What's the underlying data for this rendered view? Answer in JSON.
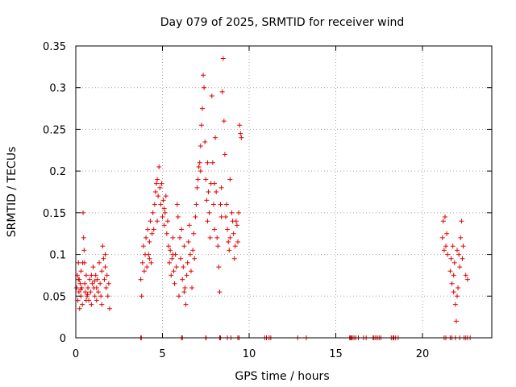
{
  "chart_data": {
    "type": "scatter",
    "title": "Day 079 of 2025, SRMTID for receiver wind",
    "xlabel": "GPS time / hours",
    "ylabel": "SRMTID / TECUs",
    "xlim": [
      0,
      24
    ],
    "ylim": [
      0,
      0.35
    ],
    "xticks": [
      0,
      5,
      10,
      15,
      20
    ],
    "xtick_labels": [
      "0",
      "5",
      "10",
      "15",
      "20"
    ],
    "yticks": [
      0,
      0.05,
      0.1,
      0.15,
      0.2,
      0.25,
      0.3,
      0.35
    ],
    "ytick_labels": [
      "0",
      "0.05",
      "0.1",
      "0.15",
      "0.2",
      "0.25",
      "0.3",
      "0.35"
    ],
    "grid": true,
    "marker": "plus",
    "color": "#e00000",
    "series": [
      {
        "name": "SRMTID",
        "points": [
          [
            0.05,
            0.06
          ],
          [
            0.1,
            0.075
          ],
          [
            0.12,
            0.045
          ],
          [
            0.15,
            0.09
          ],
          [
            0.18,
            0.055
          ],
          [
            0.2,
            0.07
          ],
          [
            0.22,
            0.035
          ],
          [
            0.25,
            0.065
          ],
          [
            0.3,
            0.05
          ],
          [
            0.3,
            0.08
          ],
          [
            0.35,
            0.06
          ],
          [
            0.38,
            0.04
          ],
          [
            0.42,
            0.15
          ],
          [
            0.45,
            0.12
          ],
          [
            0.48,
            0.105
          ],
          [
            0.5,
            0.09
          ],
          [
            0.52,
            0.065
          ],
          [
            0.55,
            0.055
          ],
          [
            0.6,
            0.075
          ],
          [
            0.65,
            0.05
          ],
          [
            0.7,
            0.06
          ],
          [
            0.75,
            0.045
          ],
          [
            0.8,
            0.07
          ],
          [
            0.85,
            0.055
          ],
          [
            0.9,
            0.04
          ],
          [
            0.95,
            0.065
          ],
          [
            1.0,
            0.085
          ],
          [
            1.05,
            0.06
          ],
          [
            1.1,
            0.05
          ],
          [
            1.15,
            0.075
          ],
          [
            1.2,
            0.045
          ],
          [
            1.25,
            0.07
          ],
          [
            1.3,
            0.055
          ],
          [
            1.35,
            0.09
          ],
          [
            1.4,
            0.065
          ],
          [
            1.45,
            0.05
          ],
          [
            1.5,
            0.08
          ],
          [
            1.55,
            0.11
          ],
          [
            1.6,
            0.095
          ],
          [
            1.65,
            0.07
          ],
          [
            1.7,
            0.085
          ],
          [
            1.75,
            0.06
          ],
          [
            1.8,
            0.075
          ],
          [
            1.85,
            0.05
          ],
          [
            1.9,
            0.065
          ],
          [
            1.95,
            0.035
          ],
          [
            0.4,
            0.09
          ],
          [
            0.6,
            0.045
          ],
          [
            0.9,
            0.075
          ],
          [
            1.2,
            0.06
          ],
          [
            1.5,
            0.04
          ],
          [
            1.7,
            0.1
          ],
          [
            0.15,
            0.07
          ],
          [
            0.28,
            0.058
          ],
          [
            0.68,
            0.052
          ],
          [
            1.08,
            0.068
          ],
          [
            3.75,
            0.07
          ],
          [
            3.8,
            0.05
          ],
          [
            3.85,
            0.09
          ],
          [
            3.9,
            0.11
          ],
          [
            3.95,
            0.08
          ],
          [
            4.0,
            0.1
          ],
          [
            4.05,
            0.12
          ],
          [
            4.1,
            0.085
          ],
          [
            4.15,
            0.13
          ],
          [
            4.2,
            0.1
          ],
          [
            4.25,
            0.115
          ],
          [
            4.3,
            0.14
          ],
          [
            4.35,
            0.09
          ],
          [
            4.4,
            0.125
          ],
          [
            4.45,
            0.15
          ],
          [
            4.5,
            0.13
          ],
          [
            4.55,
            0.16
          ],
          [
            4.6,
            0.175
          ],
          [
            4.65,
            0.185
          ],
          [
            4.7,
            0.19
          ],
          [
            4.75,
            0.17
          ],
          [
            4.8,
            0.205
          ],
          [
            4.85,
            0.18
          ],
          [
            4.9,
            0.16
          ],
          [
            4.95,
            0.185
          ],
          [
            5.0,
            0.145
          ],
          [
            5.05,
            0.165
          ],
          [
            5.1,
            0.135
          ],
          [
            5.15,
            0.15
          ],
          [
            5.2,
            0.17
          ],
          [
            5.25,
            0.125
          ],
          [
            5.3,
            0.14
          ],
          [
            5.35,
            0.11
          ],
          [
            5.4,
            0.09
          ],
          [
            5.45,
            0.105
          ],
          [
            5.5,
            0.075
          ],
          [
            5.55,
            0.095
          ],
          [
            5.6,
            0.12
          ],
          [
            5.65,
            0.08
          ],
          [
            5.7,
            0.065
          ],
          [
            5.75,
            0.1
          ],
          [
            5.8,
            0.085
          ],
          [
            5.85,
            0.16
          ],
          [
            5.9,
            0.145
          ],
          [
            5.95,
            0.05
          ],
          [
            6.0,
            0.12
          ],
          [
            6.05,
            0.095
          ],
          [
            6.1,
            0.13
          ],
          [
            6.15,
            0.07
          ],
          [
            6.2,
            0.085
          ],
          [
            6.25,
            0.11
          ],
          [
            6.3,
            0.06
          ],
          [
            6.35,
            0.04
          ],
          [
            6.4,
            0.075
          ],
          [
            6.45,
            0.09
          ],
          [
            6.5,
            0.115
          ],
          [
            6.55,
            0.135
          ],
          [
            6.6,
            0.1
          ],
          [
            6.65,
            0.08
          ],
          [
            6.7,
            0.06
          ],
          [
            6.75,
            0.105
          ],
          [
            6.8,
            0.125
          ],
          [
            6.85,
            0.095
          ],
          [
            6.9,
            0.145
          ],
          [
            6.95,
            0.16
          ],
          [
            7.0,
            0.18
          ],
          [
            7.05,
            0.19
          ],
          [
            7.1,
            0.205
          ],
          [
            7.15,
            0.21
          ],
          [
            7.2,
            0.23
          ],
          [
            7.25,
            0.255
          ],
          [
            7.3,
            0.275
          ],
          [
            7.35,
            0.315
          ],
          [
            7.4,
            0.3
          ],
          [
            7.45,
            0.235
          ],
          [
            7.5,
            0.19
          ],
          [
            7.55,
            0.165
          ],
          [
            7.6,
            0.14
          ],
          [
            7.65,
            0.175
          ],
          [
            7.7,
            0.15
          ],
          [
            7.75,
            0.12
          ],
          [
            7.8,
            0.185
          ],
          [
            7.85,
            0.29
          ],
          [
            7.9,
            0.21
          ],
          [
            7.95,
            0.16
          ],
          [
            8.0,
            0.13
          ],
          [
            8.05,
            0.24
          ],
          [
            8.1,
            0.175
          ],
          [
            8.15,
            0.12
          ],
          [
            8.2,
            0.11
          ],
          [
            8.25,
            0.085
          ],
          [
            8.3,
            0.055
          ],
          [
            8.35,
            0.16
          ],
          [
            8.4,
            0.18
          ],
          [
            8.45,
            0.295
          ],
          [
            8.5,
            0.335
          ],
          [
            8.55,
            0.26
          ],
          [
            8.6,
            0.22
          ],
          [
            8.65,
            0.145
          ],
          [
            8.7,
            0.16
          ],
          [
            8.75,
            0.13
          ],
          [
            8.8,
            0.115
          ],
          [
            8.85,
            0.105
          ],
          [
            8.9,
            0.12
          ],
          [
            9.0,
            0.15
          ],
          [
            9.05,
            0.14
          ],
          [
            9.1,
            0.125
          ],
          [
            9.15,
            0.095
          ],
          [
            9.2,
            0.11
          ],
          [
            9.25,
            0.14
          ],
          [
            9.3,
            0.135
          ],
          [
            9.35,
            0.115
          ],
          [
            9.4,
            0.15
          ],
          [
            9.45,
            0.255
          ],
          [
            9.5,
            0.245
          ],
          [
            9.55,
            0.24
          ],
          [
            4.25,
            0.095
          ],
          [
            4.7,
            0.14
          ],
          [
            5.1,
            0.155
          ],
          [
            5.6,
            0.1
          ],
          [
            6.25,
            0.055
          ],
          [
            7.2,
            0.2
          ],
          [
            7.6,
            0.21
          ],
          [
            8.0,
            0.185
          ],
          [
            8.4,
            0.145
          ],
          [
            8.9,
            0.19
          ],
          [
            21.15,
            0.12
          ],
          [
            21.2,
            0.14
          ],
          [
            21.25,
            0.105
          ],
          [
            21.3,
            0.145
          ],
          [
            21.35,
            0.11
          ],
          [
            21.4,
            0.125
          ],
          [
            21.45,
            0.1
          ],
          [
            21.6,
            0.08
          ],
          [
            21.65,
            0.095
          ],
          [
            21.7,
            0.065
          ],
          [
            21.75,
            0.11
          ],
          [
            21.8,
            0.075
          ],
          [
            21.85,
            0.09
          ],
          [
            21.9,
            0.04
          ],
          [
            21.95,
            0.02
          ],
          [
            22.0,
            0.105
          ],
          [
            22.05,
            0.06
          ],
          [
            22.1,
            0.1
          ],
          [
            22.15,
            0.085
          ],
          [
            22.2,
            0.12
          ],
          [
            22.25,
            0.14
          ],
          [
            22.3,
            0.095
          ],
          [
            22.35,
            0.11
          ],
          [
            22.5,
            0.075
          ],
          [
            22.6,
            0.07
          ],
          [
            21.8,
            0.055
          ],
          [
            22.0,
            0.05
          ]
        ]
      }
    ],
    "zero_points_x": [
      3.75,
      3.78,
      6.1,
      6.15,
      7.5,
      7.52,
      8.3,
      8.35,
      8.75,
      8.95,
      9.35,
      9.42,
      10.9,
      11.0,
      11.15,
      11.25,
      12.8,
      13.3,
      15.8,
      15.85,
      15.9,
      15.95,
      16.05,
      16.15,
      16.3,
      16.6,
      16.75,
      17.15,
      17.2,
      17.3,
      17.4,
      17.5,
      17.6,
      18.2,
      18.3,
      18.35,
      18.45,
      18.6,
      21.25,
      21.35,
      21.6,
      21.7,
      21.9,
      22.15,
      22.4,
      22.5,
      22.6,
      22.75
    ]
  }
}
